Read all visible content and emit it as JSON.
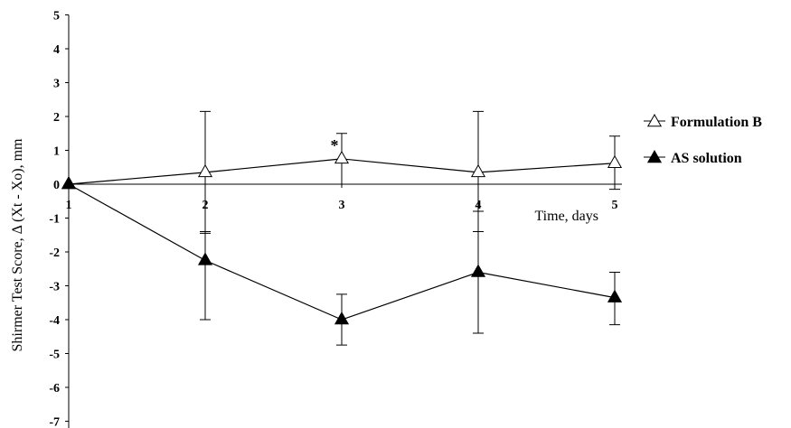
{
  "chart_data": {
    "type": "line",
    "x": [
      1,
      2,
      3,
      4,
      5
    ],
    "ylim": [
      -7,
      5
    ],
    "yticks": [
      5,
      4,
      3,
      2,
      1,
      0,
      -1,
      -2,
      -3,
      -4,
      -5,
      -6,
      -7
    ],
    "xticks": [
      1,
      2,
      3,
      4,
      5
    ],
    "ylabel": "Shirmer Test Score,  Δ (Xt  - Xo), mm",
    "xlabel": "Time, days",
    "grid": false,
    "legend_position": "right",
    "series": [
      {
        "name": "Formulation B",
        "marker": "open-triangle",
        "values": [
          0,
          0.35,
          0.75,
          0.35,
          0.62
        ],
        "err_low": [
          0,
          -1.45,
          0,
          -1.4,
          -0.15
        ],
        "err_high": [
          0,
          2.15,
          1.5,
          2.15,
          1.42
        ]
      },
      {
        "name": "AS solution",
        "marker": "filled-triangle",
        "values": [
          0,
          -2.25,
          -4.0,
          -2.6,
          -3.35
        ],
        "err_low": [
          0,
          -4.0,
          -4.75,
          -4.4,
          -4.15
        ],
        "err_high": [
          0,
          -1.4,
          -3.25,
          -0.8,
          -2.6
        ]
      }
    ],
    "annotations": [
      {
        "text": "*",
        "x": 3,
        "y": 1.1
      }
    ]
  }
}
